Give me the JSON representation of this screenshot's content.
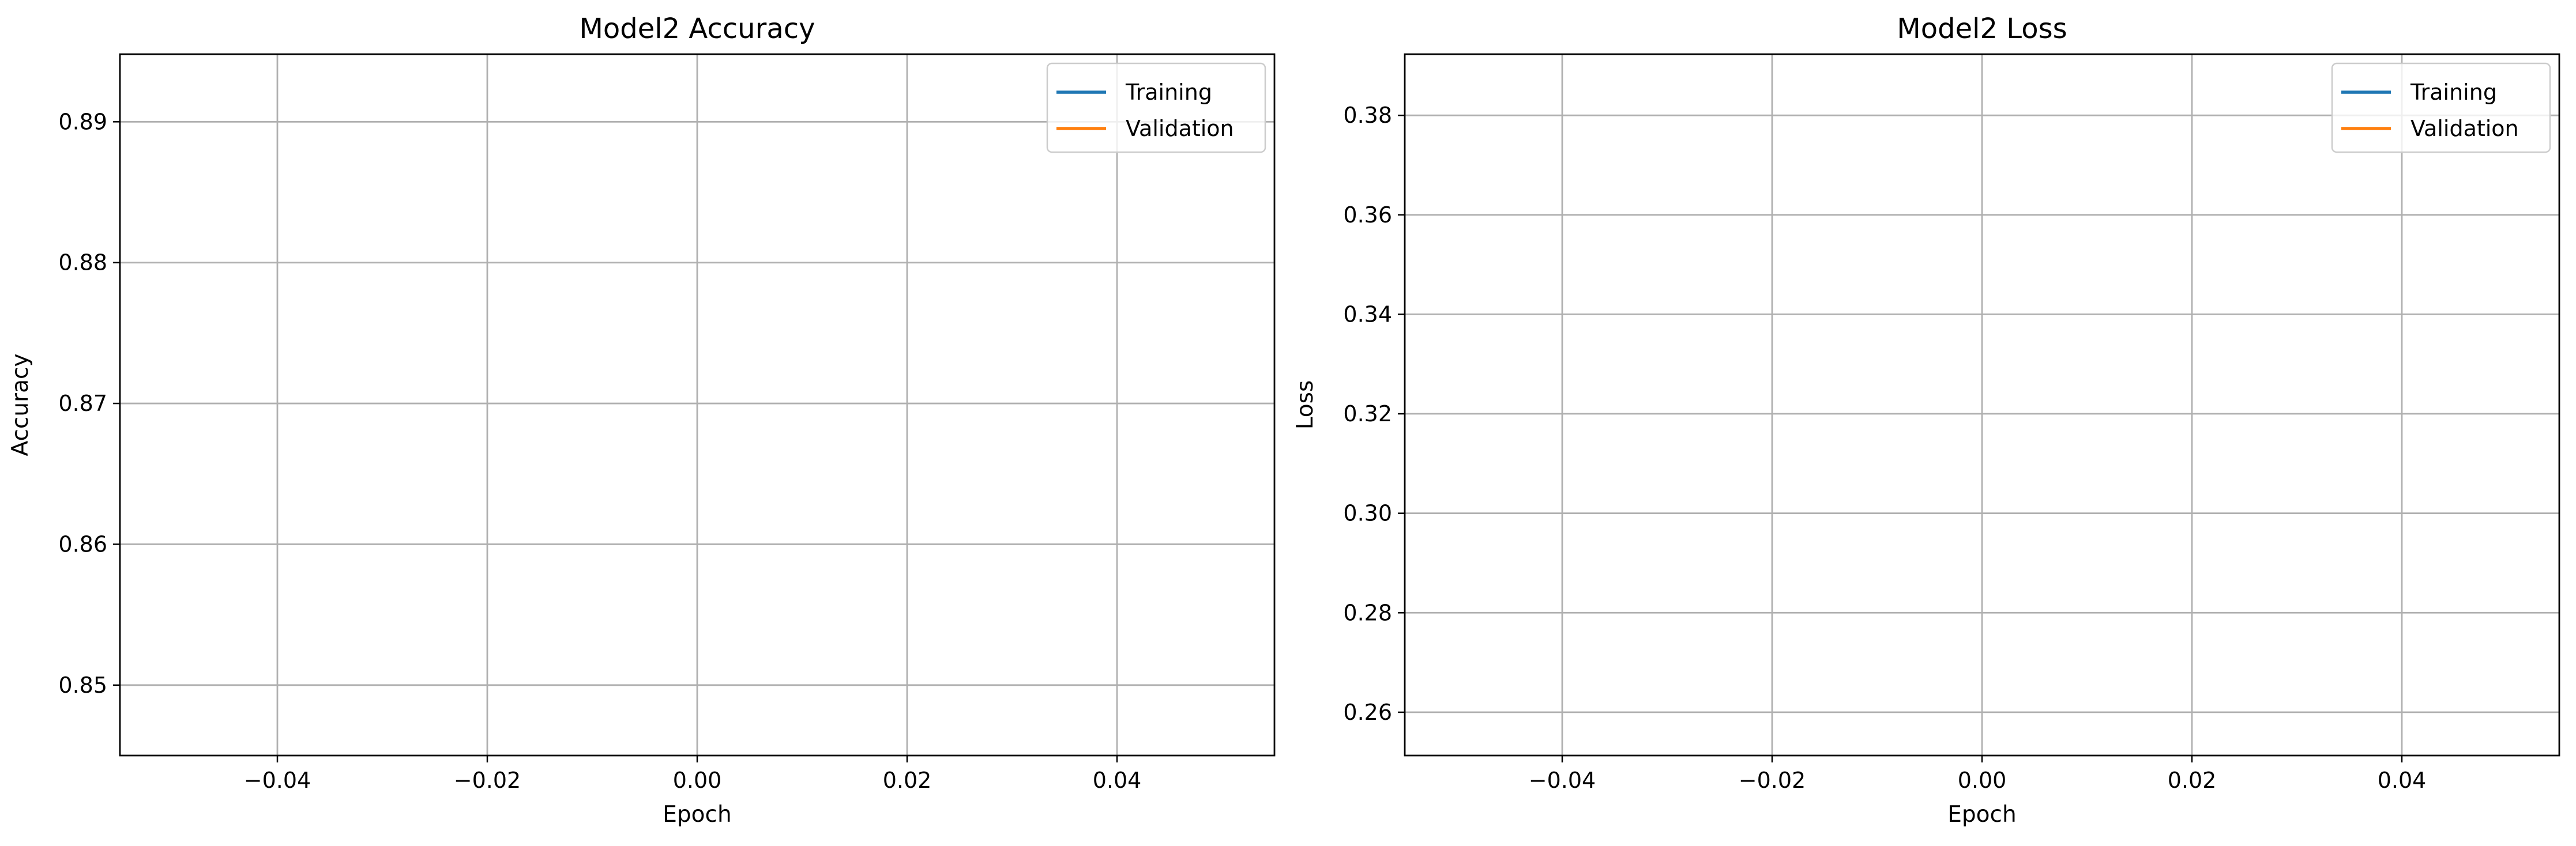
{
  "chart_data": [
    {
      "type": "line",
      "title": "Model2 Accuracy",
      "xlabel": "Epoch",
      "ylabel": "Accuracy",
      "xlim": [
        -0.055,
        0.055
      ],
      "ylim": [
        0.845,
        0.8948
      ],
      "xticks": [
        -0.04,
        -0.02,
        0.0,
        0.02,
        0.04
      ],
      "xtick_labels": [
        "−0.04",
        "−0.02",
        "0.00",
        "0.02",
        "0.04"
      ],
      "yticks": [
        0.85,
        0.86,
        0.87,
        0.88,
        0.89
      ],
      "ytick_labels": [
        "0.85",
        "0.86",
        "0.87",
        "0.88",
        "0.89"
      ],
      "grid": true,
      "legend_position": "top-right",
      "series": [
        {
          "name": "Training",
          "color": "#1f77b4",
          "x": [],
          "y": []
        },
        {
          "name": "Validation",
          "color": "#ff7f0e",
          "x": [],
          "y": []
        }
      ]
    },
    {
      "type": "line",
      "title": "Model2 Loss",
      "xlabel": "Epoch",
      "ylabel": "Loss",
      "xlim": [
        -0.055,
        0.055
      ],
      "ylim": [
        0.2513,
        0.3923
      ],
      "xticks": [
        -0.04,
        -0.02,
        0.0,
        0.02,
        0.04
      ],
      "xtick_labels": [
        "−0.04",
        "−0.02",
        "0.00",
        "0.02",
        "0.04"
      ],
      "yticks": [
        0.26,
        0.28,
        0.3,
        0.32,
        0.34,
        0.36,
        0.38
      ],
      "ytick_labels": [
        "0.26",
        "0.28",
        "0.30",
        "0.32",
        "0.34",
        "0.36",
        "0.38"
      ],
      "grid": true,
      "legend_position": "top-right",
      "series": [
        {
          "name": "Training",
          "color": "#1f77b4",
          "x": [],
          "y": []
        },
        {
          "name": "Validation",
          "color": "#ff7f0e",
          "x": [],
          "y": []
        }
      ]
    }
  ]
}
